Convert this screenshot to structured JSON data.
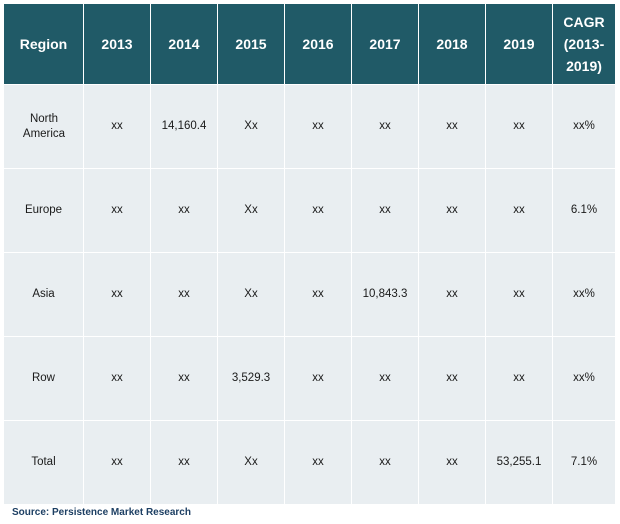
{
  "table": {
    "headers": [
      "Region",
      "2013",
      "2014",
      "2015",
      "2016",
      "2017",
      "2018",
      "2019",
      "CAGR (2013-2019)"
    ],
    "rows": [
      {
        "region": "North America",
        "values": [
          "xx",
          "14,160.4",
          "Xx",
          "xx",
          "xx",
          "xx",
          "xx",
          "xx%"
        ]
      },
      {
        "region": "Europe",
        "values": [
          "xx",
          "xx",
          "Xx",
          "xx",
          "xx",
          "xx",
          "xx",
          "6.1%"
        ]
      },
      {
        "region": "Asia",
        "values": [
          "xx",
          "xx",
          "Xx",
          "xx",
          "10,843.3",
          "xx",
          "xx",
          "xx%"
        ]
      },
      {
        "region": "Row",
        "values": [
          "xx",
          "xx",
          "3,529.3",
          "xx",
          "xx",
          "xx",
          "xx",
          "xx%"
        ]
      },
      {
        "region": "Total",
        "values": [
          "xx",
          "xx",
          "Xx",
          "xx",
          "xx",
          "xx",
          "53,255.1",
          "7.1%"
        ]
      }
    ]
  },
  "source": "Source: Persistence Market Research",
  "colors": {
    "header_bg": "#205a67",
    "header_text": "#ffffff",
    "cell_bg": "#e9eef1",
    "source_text": "#1d3f63"
  }
}
